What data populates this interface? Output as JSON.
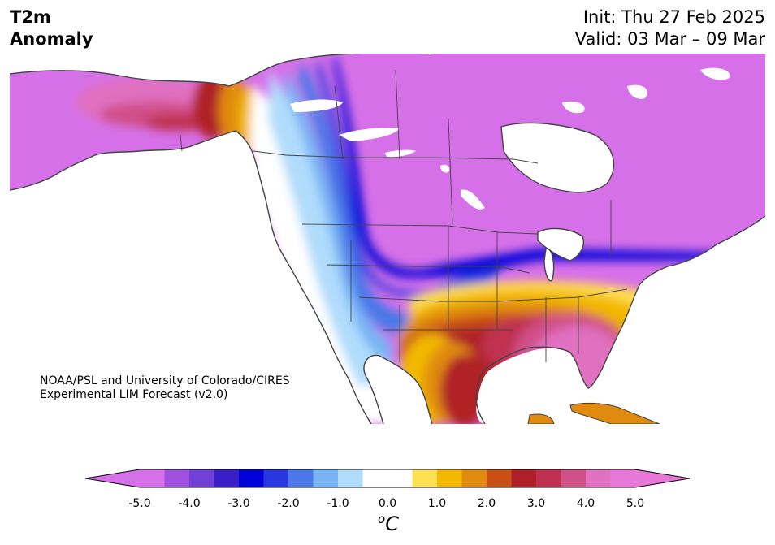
{
  "title": {
    "left": "T2m\nAnomaly",
    "init": "Init: Thu 27 Feb 2025",
    "valid": "Valid: 03 Mar – 09 Mar"
  },
  "credit": {
    "line1": "NOAA/PSL and University of Colorado/CIRES",
    "line2": "Experimental LIM Forecast (v2.0)"
  },
  "colorbar": {
    "unit_sup": "o",
    "unit_main": "C",
    "tick_labels": [
      "-5.0",
      "-4.0",
      "-3.0",
      "-2.0",
      "-1.0",
      "0.0",
      "1.0",
      "2.0",
      "3.0",
      "4.0",
      "5.0"
    ],
    "range": [
      -5.0,
      5.0
    ],
    "levels": [
      -5.0,
      -4.5,
      -4.0,
      -3.5,
      -3.0,
      -2.5,
      -2.0,
      -1.5,
      -1.0,
      -0.5,
      0.5,
      1.0,
      1.5,
      2.0,
      2.5,
      3.0,
      3.5,
      4.0,
      4.5,
      5.0
    ],
    "colors": [
      "#d670e8",
      "#a050e0",
      "#7040d8",
      "#3a1ec8",
      "#0000d8",
      "#2838e0",
      "#4a78e8",
      "#78b4f4",
      "#b0dcfc",
      "#ffffff",
      "#ffffff",
      "#ffe050",
      "#f2b800",
      "#e08a10",
      "#c85014",
      "#b02028",
      "#c03050",
      "#d05088",
      "#e070c0",
      "#e878d8"
    ],
    "over_color": "#e878d8",
    "under_color": "#d670e8"
  }
}
